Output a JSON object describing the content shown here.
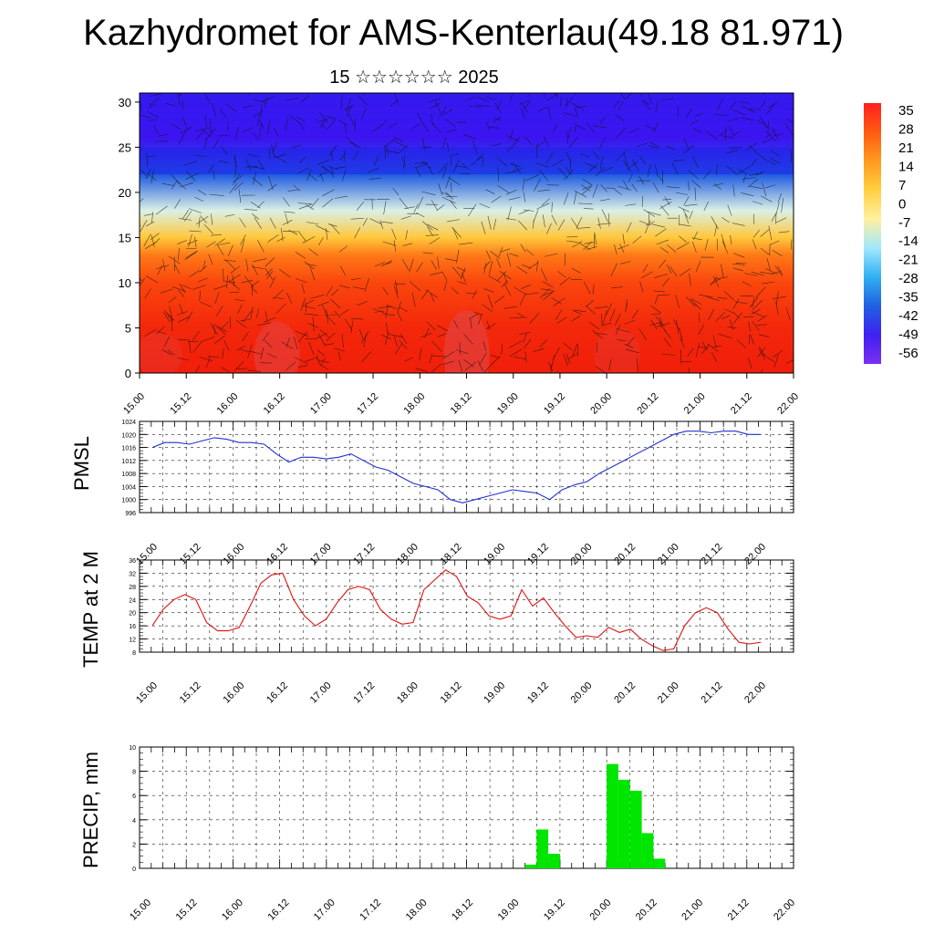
{
  "title": "Kazhydromet for AMS-Kenterlau(49.18 81.971)",
  "subtitle": "15 ☆☆☆☆☆☆ 2025",
  "time_ticks": [
    "15.00",
    "15.12",
    "16.00",
    "16.12",
    "17.00",
    "17.12",
    "18.00",
    "18.12",
    "19.00",
    "19.12",
    "20.00",
    "20.12",
    "21.00",
    "21.12",
    "22.00"
  ],
  "colorbar": {
    "labels": [
      "35",
      "28",
      "21",
      "14",
      "7",
      "0",
      "-7",
      "-14",
      "-21",
      "-28",
      "-35",
      "-42",
      "-49",
      "-56"
    ],
    "colors": [
      "#ff2020",
      "#ff5a10",
      "#ff9a20",
      "#ffd040",
      "#fff0a0",
      "#a0e8ff",
      "#30b0f0",
      "#2060e0",
      "#4020f0",
      "#7a30f0"
    ]
  },
  "chart_data": [
    {
      "type": "heatmap",
      "title": "",
      "xlabel": "",
      "ylabel": "",
      "x_ticks": [
        "15.00",
        "15.12",
        "16.00",
        "16.12",
        "17.00",
        "17.12",
        "18.00",
        "18.12",
        "19.00",
        "19.12",
        "20.00",
        "20.12",
        "21.00",
        "21.12",
        "22.00"
      ],
      "y_ticks": [
        0,
        5,
        10,
        15,
        20,
        25,
        30
      ],
      "ylim": [
        0,
        31
      ],
      "levels": [
        0,
        5,
        10,
        15,
        20,
        25,
        30
      ],
      "temperature_profile": [
        24,
        23,
        20,
        15,
        4,
        -14,
        -38,
        -52,
        -50
      ],
      "temperature_profile_levels": [
        0,
        5,
        10,
        13,
        15,
        18,
        22,
        26,
        31
      ],
      "overlay": "wind barbs"
    },
    {
      "type": "line",
      "ylabel": "PMSL",
      "ylim": [
        996,
        1024
      ],
      "y_ticks": [
        996,
        1000,
        1004,
        1008,
        1012,
        1016,
        1020,
        1024
      ],
      "x_ticks": [
        "15.00",
        "15.12",
        "16.00",
        "16.12",
        "17.00",
        "17.12",
        "18.00",
        "18.12",
        "19.00",
        "19.12",
        "20.00",
        "20.12",
        "21.00",
        "21.12",
        "22.00"
      ],
      "color": "#2030d0",
      "series": [
        {
          "values": [
            1016,
            1017.5,
            1017.5,
            1017,
            1018,
            1019,
            1018.5,
            1017.5,
            1017.5,
            1017,
            1014,
            1011.5,
            1013,
            1013,
            1012.5,
            1013,
            1014,
            1012,
            1010,
            1009,
            1007,
            1005,
            1004,
            1003,
            1000,
            999,
            1000,
            1001,
            1002,
            1003,
            1002.5,
            1002,
            1000,
            1003,
            1004.5,
            1005.5,
            1008,
            1010,
            1012,
            1014,
            1016,
            1018,
            1020,
            1021,
            1021,
            1020.5,
            1021,
            1021,
            1020,
            1020
          ]
        }
      ]
    },
    {
      "type": "line",
      "ylabel": "TEMP at 2 M",
      "ylim": [
        8,
        36
      ],
      "y_ticks": [
        8,
        12,
        16,
        20,
        24,
        28,
        32,
        36
      ],
      "x_ticks": [
        "15.00",
        "15.12",
        "16.00",
        "16.12",
        "17.00",
        "17.12",
        "18.00",
        "18.12",
        "19.00",
        "19.12",
        "20.00",
        "20.12",
        "21.00",
        "21.12",
        "22.00"
      ],
      "color": "#e01010",
      "series": [
        {
          "values": [
            16,
            21,
            24,
            25.5,
            24,
            17,
            14.5,
            14.5,
            15.5,
            22,
            29,
            31.5,
            32,
            24,
            19,
            16,
            18,
            23,
            27,
            28,
            27,
            21,
            18,
            16.5,
            17,
            27,
            30,
            33,
            31,
            25,
            23,
            19,
            18,
            19,
            27,
            22,
            24.5,
            20,
            16,
            12.5,
            13,
            12.5,
            15.5,
            14,
            15,
            12,
            10,
            8.5,
            9,
            16,
            20,
            21.5,
            20,
            15,
            11,
            10.5,
            11
          ]
        }
      ]
    },
    {
      "type": "bar",
      "ylabel": "PRECIP, mm",
      "ylim": [
        0,
        10
      ],
      "y_ticks": [
        0,
        2,
        4,
        6,
        8,
        10
      ],
      "x_ticks": [
        "15.00",
        "15.12",
        "16.00",
        "16.12",
        "17.00",
        "17.12",
        "18.00",
        "18.12",
        "19.00",
        "19.12",
        "20.00",
        "20.12",
        "21.00",
        "21.12",
        "22.00"
      ],
      "color": "#00e600",
      "bar_times_hours": [
        99,
        102,
        105,
        120,
        123,
        126,
        129,
        132,
        135
      ],
      "values": [
        0.3,
        3.2,
        1.2,
        8.6,
        7.3,
        6.4,
        2.9,
        0.8,
        0.0
      ]
    }
  ]
}
